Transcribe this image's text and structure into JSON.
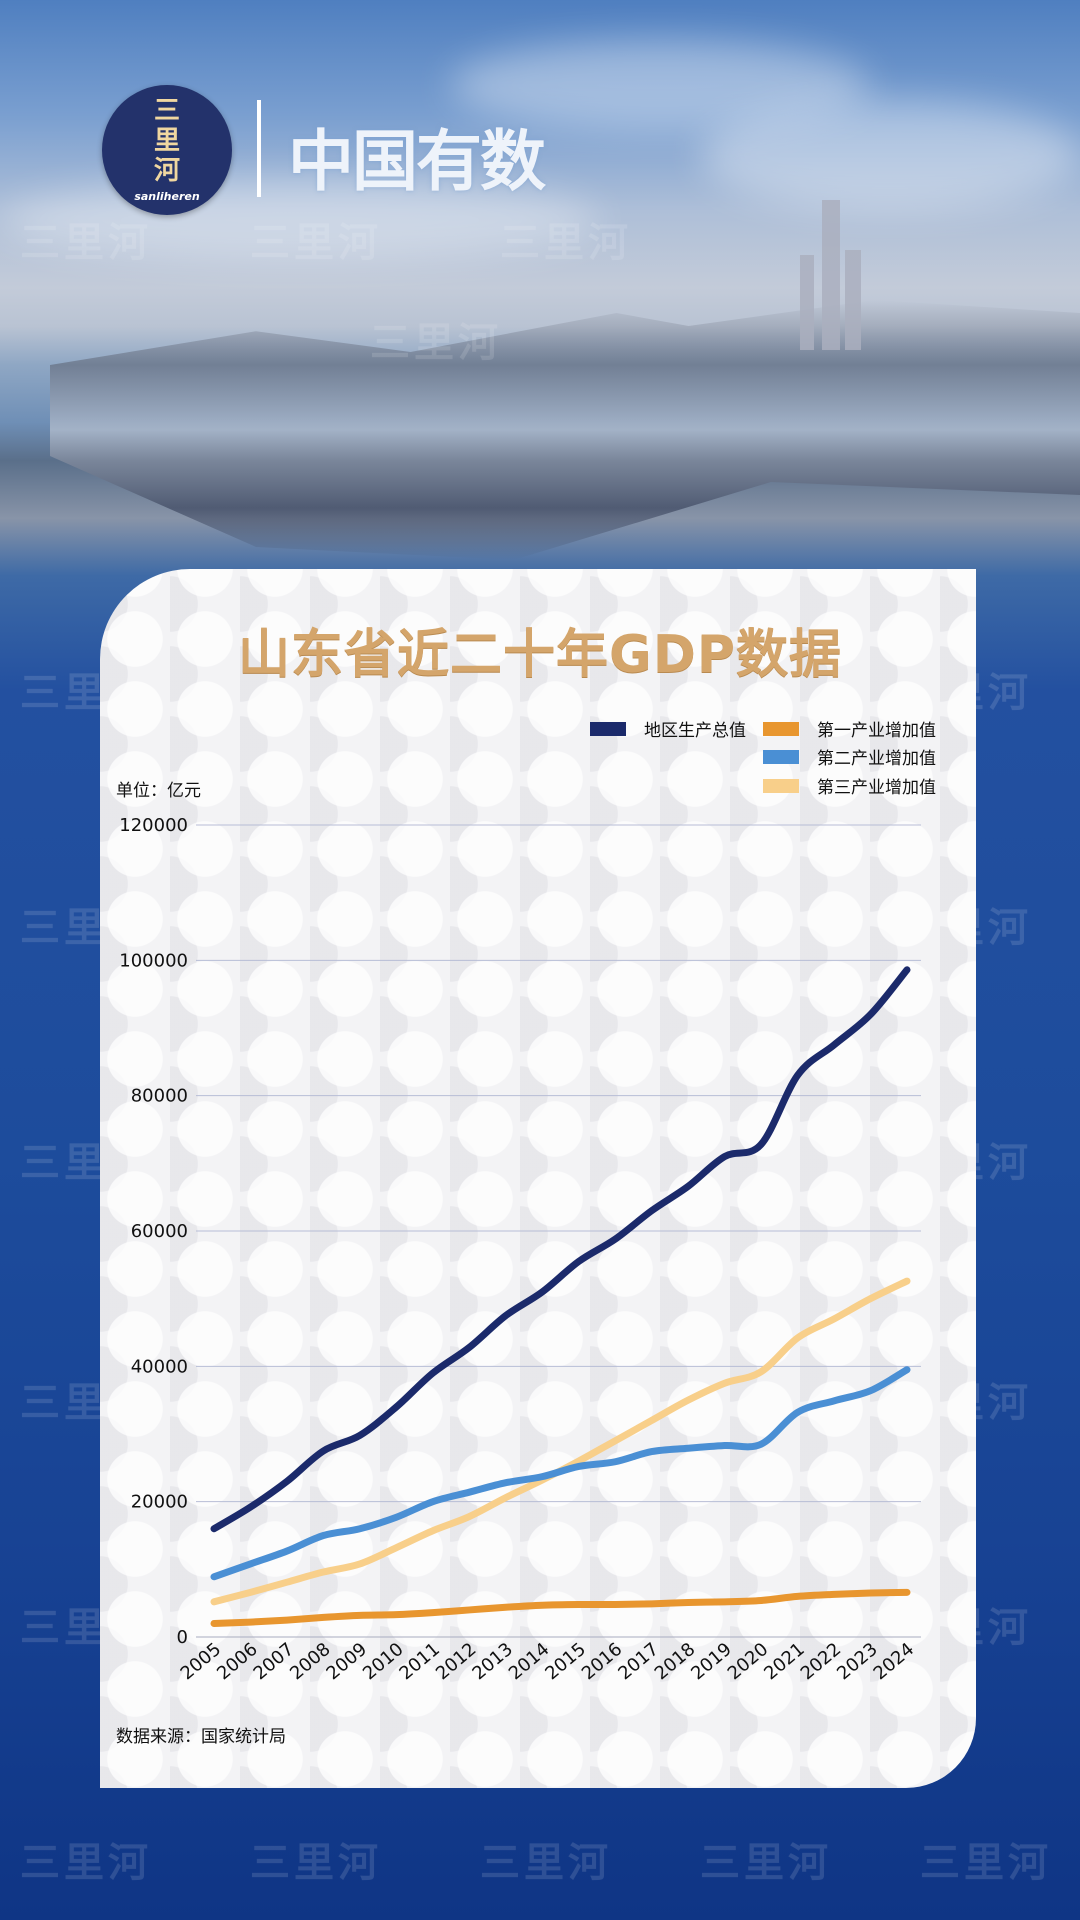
{
  "logo": {
    "line1": "三",
    "line2": "里",
    "line3": "河",
    "en": "sanliheren"
  },
  "brand": "中国有数",
  "watermark": "三里河",
  "title": "山东省近二十年GDP数据",
  "unit": "单位：亿元",
  "source": "数据来源：国家统计局",
  "colors": {
    "gdp": "#1b2a6b",
    "primary": "#e8962f",
    "secondary": "#4a8fd4",
    "tertiary": "#f8cf8a"
  },
  "chart_data": {
    "type": "line",
    "title": "山东省近二十年GDP数据",
    "ylabel": "单位：亿元",
    "ylim": [
      0,
      120000
    ],
    "yticks": [
      0,
      20000,
      40000,
      60000,
      80000,
      100000,
      120000
    ],
    "grid": true,
    "legend_position": "top-right",
    "x": [
      "2005",
      "2006",
      "2007",
      "2008",
      "2009",
      "2010",
      "2011",
      "2012",
      "2013",
      "2014",
      "2015",
      "2016",
      "2017",
      "2018",
      "2019",
      "2020",
      "2021",
      "2022",
      "2023",
      "2024"
    ],
    "series": [
      {
        "name": "地区生产总值",
        "key": "gdp",
        "values": [
          16000,
          19200,
          23000,
          27500,
          29800,
          34000,
          39000,
          42800,
          47500,
          51000,
          55500,
          58800,
          63000,
          66600,
          71000,
          72800,
          83000,
          87500,
          92000,
          98600
        ]
      },
      {
        "name": "第一产业增加值",
        "key": "primary",
        "values": [
          2000,
          2200,
          2500,
          2900,
          3200,
          3300,
          3600,
          4000,
          4400,
          4700,
          4800,
          4800,
          4900,
          5100,
          5200,
          5400,
          6000,
          6300,
          6500,
          6600
        ]
      },
      {
        "name": "第二产业增加值",
        "key": "secondary",
        "values": [
          8900,
          10800,
          12700,
          15000,
          16000,
          17700,
          20000,
          21400,
          22800,
          23700,
          25200,
          25900,
          27400,
          27900,
          28300,
          28500,
          33200,
          34900,
          36400,
          39500
        ]
      },
      {
        "name": "第三产业增加值",
        "key": "tertiary",
        "values": [
          5200,
          6600,
          8100,
          9600,
          10800,
          13200,
          15700,
          17800,
          20600,
          23200,
          26000,
          29000,
          32000,
          35000,
          37500,
          39200,
          44200,
          47000,
          50000,
          52600
        ]
      }
    ]
  }
}
